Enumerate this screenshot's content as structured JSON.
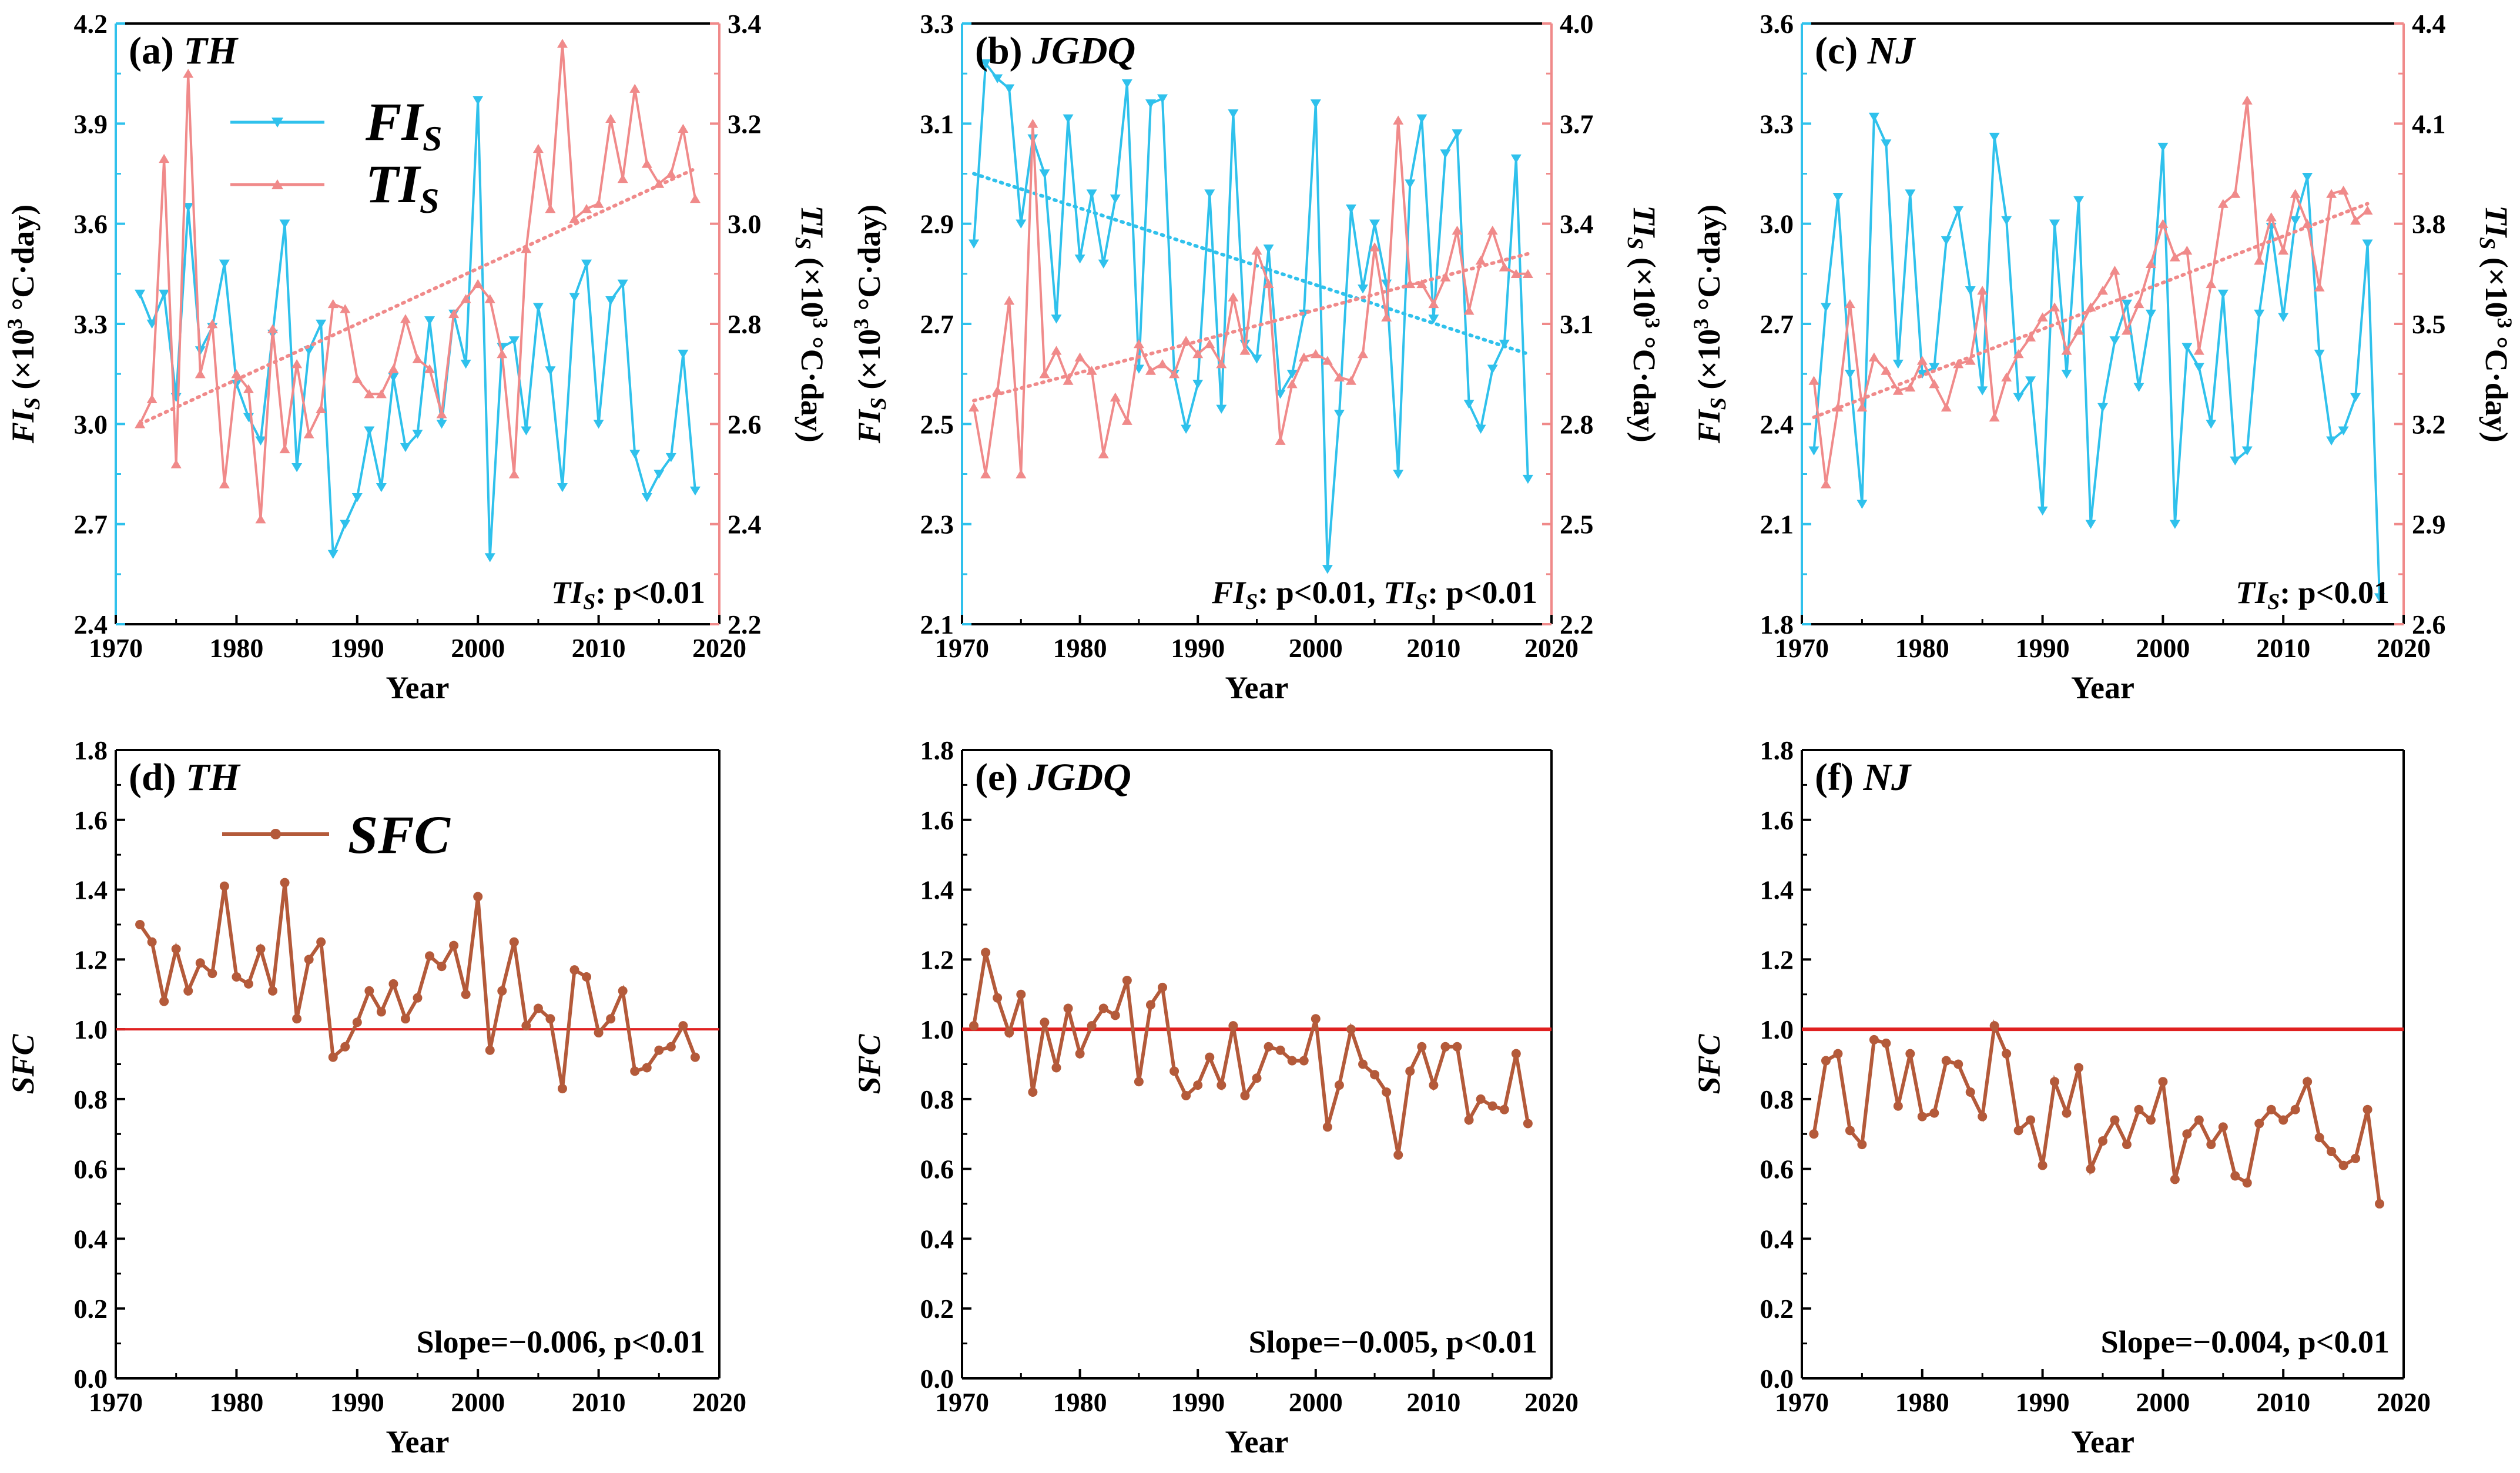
{
  "colors": {
    "fi": "#2fc1ec",
    "ti": "#f08a8a",
    "sfc": "#b45a3a",
    "ref": "#e02020"
  },
  "legend": {
    "fi": {
      "main": "FI",
      "sub": "S"
    },
    "ti": {
      "main": "TI",
      "sub": "S"
    },
    "sfc": "SFC"
  },
  "chart_data": [
    {
      "panel": "a",
      "type": "line",
      "title": {
        "prefix": "(a) ",
        "name": "TH"
      },
      "xlabel": "Year",
      "xlim": [
        1970,
        2020
      ],
      "xticks": [
        1970,
        1980,
        1990,
        2000,
        2010,
        2020
      ],
      "ylabel_left": {
        "main": "FI",
        "sub": "S",
        "rest": " (×10",
        "sup": "3",
        "unit": " °C·day)"
      },
      "ylabel_right": {
        "main": "TI",
        "sub": "S",
        "rest": " (×10",
        "sup": "3",
        "unit": " °C·day)"
      },
      "ylim_left": [
        2.4,
        4.2
      ],
      "yticks_left": [
        "2.4",
        "2.7",
        "3.0",
        "3.3",
        "3.6",
        "3.9",
        "4.2"
      ],
      "ylim_right": [
        2.2,
        3.4
      ],
      "yticks_right": [
        "2.2",
        "2.4",
        "2.6",
        "2.8",
        "3.0",
        "3.2",
        "3.4"
      ],
      "annotation": {
        "parts": [
          {
            "main": "TI",
            "sub": "S",
            "rest": ": p<0.01"
          }
        ]
      },
      "legend_position": "upper-center",
      "series": [
        {
          "name": "FIS",
          "axis": "left",
          "x_start": 1972,
          "values": [
            3.39,
            3.3,
            3.39,
            3.08,
            3.65,
            3.22,
            3.29,
            3.48,
            3.12,
            3.02,
            2.95,
            3.27,
            3.6,
            2.87,
            3.22,
            3.3,
            2.61,
            2.7,
            2.78,
            2.98,
            2.81,
            3.14,
            2.93,
            2.97,
            3.31,
            3.0,
            3.33,
            3.18,
            3.97,
            2.6,
            3.23,
            3.25,
            2.98,
            3.35,
            3.16,
            2.81,
            3.38,
            3.48,
            3.0,
            3.37,
            3.42,
            2.91,
            2.78,
            2.85,
            2.9,
            3.21,
            2.8
          ],
          "trend": null
        },
        {
          "name": "TIS",
          "axis": "right",
          "x_start": 1972,
          "values": [
            2.6,
            2.65,
            3.13,
            2.52,
            3.3,
            2.7,
            2.8,
            2.48,
            2.7,
            2.67,
            2.41,
            2.79,
            2.55,
            2.72,
            2.58,
            2.63,
            2.84,
            2.83,
            2.69,
            2.66,
            2.66,
            2.71,
            2.81,
            2.73,
            2.71,
            2.62,
            2.82,
            2.85,
            2.88,
            2.85,
            2.74,
            2.5,
            2.95,
            3.15,
            3.03,
            3.36,
            3.01,
            3.03,
            3.04,
            3.21,
            3.09,
            3.27,
            3.12,
            3.08,
            3.1,
            3.19,
            3.05
          ],
          "trend": [
            2.6,
            3.11
          ]
        }
      ]
    },
    {
      "panel": "b",
      "type": "line",
      "title": {
        "prefix": "(b) ",
        "name": "JGDQ"
      },
      "xlabel": "Year",
      "xlim": [
        1970,
        2020
      ],
      "xticks": [
        1970,
        1980,
        1990,
        2000,
        2010,
        2020
      ],
      "ylabel_left": {
        "main": "FI",
        "sub": "S",
        "rest": " (×10",
        "sup": "3",
        "unit": " °C·day)"
      },
      "ylabel_right": {
        "main": "TI",
        "sub": "S",
        "rest": " (×10",
        "sup": "3",
        "unit": " °C·day)"
      },
      "ylim_left": [
        2.1,
        3.3
      ],
      "yticks_left": [
        "2.1",
        "2.3",
        "2.5",
        "2.7",
        "2.9",
        "3.1",
        "3.3"
      ],
      "ylim_right": [
        2.2,
        4.0
      ],
      "yticks_right": [
        "2.2",
        "2.5",
        "2.8",
        "3.1",
        "3.4",
        "3.7",
        "4.0"
      ],
      "annotation": {
        "parts": [
          {
            "main": "FI",
            "sub": "S",
            "rest": ": p<0.01, "
          },
          {
            "main": "TI",
            "sub": "S",
            "rest": ": p<0.01"
          }
        ]
      },
      "legend_position": "none",
      "series": [
        {
          "name": "FIS",
          "axis": "left",
          "x_start": 1971,
          "values": [
            2.86,
            3.22,
            3.19,
            3.17,
            2.9,
            3.07,
            3.0,
            2.71,
            3.11,
            2.83,
            2.96,
            2.82,
            2.95,
            3.18,
            2.61,
            3.14,
            3.15,
            2.6,
            2.49,
            2.58,
            2.96,
            2.53,
            3.12,
            2.66,
            2.63,
            2.85,
            2.56,
            2.6,
            2.72,
            3.14,
            2.21,
            2.52,
            2.93,
            2.77,
            2.9,
            2.78,
            2.4,
            2.98,
            3.11,
            2.71,
            3.04,
            3.08,
            2.54,
            2.49,
            2.61,
            2.66,
            3.03,
            2.39
          ],
          "trend": [
            3.0,
            2.64
          ]
        },
        {
          "name": "TIS",
          "axis": "right",
          "x_start": 1971,
          "values": [
            2.85,
            2.65,
            2.9,
            3.17,
            2.65,
            3.7,
            2.95,
            3.02,
            2.93,
            3.0,
            2.96,
            2.71,
            2.88,
            2.81,
            3.04,
            2.96,
            2.98,
            2.95,
            3.05,
            3.01,
            3.04,
            2.98,
            3.18,
            3.02,
            3.32,
            3.22,
            2.75,
            2.92,
            3.0,
            3.01,
            2.99,
            2.94,
            2.93,
            3.01,
            3.33,
            3.12,
            3.71,
            3.22,
            3.22,
            3.16,
            3.24,
            3.38,
            3.14,
            3.29,
            3.38,
            3.27,
            3.25,
            3.25
          ],
          "trend": [
            2.87,
            3.31
          ]
        }
      ]
    },
    {
      "panel": "c",
      "type": "line",
      "title": {
        "prefix": "(c) ",
        "name": "NJ"
      },
      "xlabel": "Year",
      "xlim": [
        1970,
        2020
      ],
      "xticks": [
        1970,
        1980,
        1990,
        2000,
        2010,
        2020
      ],
      "ylabel_left": {
        "main": "FI",
        "sub": "S",
        "rest": " (×10",
        "sup": "3",
        "unit": " °C·day)"
      },
      "ylabel_right": {
        "main": "TI",
        "sub": "S",
        "rest": " (×10",
        "sup": "3",
        "unit": " °C·day)"
      },
      "ylim_left": [
        1.8,
        3.6
      ],
      "yticks_left": [
        "1.8",
        "2.1",
        "2.4",
        "2.7",
        "3.0",
        "3.3",
        "3.6"
      ],
      "ylim_right": [
        2.6,
        4.4
      ],
      "yticks_right": [
        "2.6",
        "2.9",
        "3.2",
        "3.5",
        "3.8",
        "4.1",
        "4.4"
      ],
      "annotation": {
        "parts": [
          {
            "main": "TI",
            "sub": "S",
            "rest": ": p<0.01"
          }
        ]
      },
      "legend_position": "none",
      "series": [
        {
          "name": "FIS",
          "axis": "left",
          "x_start": 1971,
          "values": [
            2.32,
            2.75,
            3.08,
            2.55,
            2.16,
            3.32,
            3.24,
            2.58,
            3.09,
            2.55,
            2.57,
            2.95,
            3.04,
            2.8,
            2.5,
            3.26,
            3.01,
            2.48,
            2.53,
            2.14,
            3.0,
            2.55,
            3.07,
            2.1,
            2.45,
            2.65,
            2.76,
            2.51,
            2.73,
            3.23,
            2.1,
            2.63,
            2.57,
            2.4,
            2.79,
            2.29,
            2.32,
            2.73,
            2.99,
            2.72,
            3.01,
            3.14,
            2.61,
            2.35,
            2.38,
            2.48,
            2.94,
            1.88
          ],
          "trend": null
        },
        {
          "name": "TIS",
          "axis": "right",
          "x_start": 1971,
          "values": [
            3.33,
            3.02,
            3.25,
            3.56,
            3.25,
            3.4,
            3.36,
            3.3,
            3.31,
            3.39,
            3.32,
            3.25,
            3.38,
            3.39,
            3.6,
            3.22,
            3.34,
            3.41,
            3.46,
            3.52,
            3.55,
            3.42,
            3.48,
            3.55,
            3.6,
            3.66,
            3.48,
            3.56,
            3.68,
            3.8,
            3.7,
            3.72,
            3.42,
            3.62,
            3.86,
            3.89,
            4.17,
            3.69,
            3.82,
            3.72,
            3.89,
            3.8,
            3.61,
            3.89,
            3.9,
            3.81,
            3.84
          ],
          "trend": [
            3.22,
            3.86
          ]
        }
      ]
    },
    {
      "panel": "d",
      "type": "line",
      "title": {
        "prefix": "(d) ",
        "name": "TH"
      },
      "xlabel": "Year",
      "xlim": [
        1970,
        2020
      ],
      "xticks": [
        1970,
        1980,
        1990,
        2000,
        2010,
        2020
      ],
      "ylabel": "SFC",
      "ylim": [
        0.0,
        1.8
      ],
      "yticks": [
        "0.0",
        "0.2",
        "0.4",
        "0.6",
        "0.8",
        "1.0",
        "1.2",
        "1.4",
        "1.6",
        "1.8"
      ],
      "reference_line": 1.0,
      "annotation": "Slope=−0.006, p<0.01",
      "legend_position": "upper-center",
      "series": [
        {
          "name": "SFC",
          "x_start": 1972,
          "values": [
            1.3,
            1.25,
            1.08,
            1.23,
            1.11,
            1.19,
            1.16,
            1.41,
            1.15,
            1.13,
            1.23,
            1.11,
            1.42,
            1.03,
            1.2,
            1.25,
            0.92,
            0.95,
            1.02,
            1.11,
            1.05,
            1.13,
            1.03,
            1.09,
            1.21,
            1.18,
            1.24,
            1.1,
            1.38,
            0.94,
            1.11,
            1.25,
            1.01,
            1.06,
            1.03,
            0.83,
            1.17,
            1.15,
            0.99,
            1.03,
            1.11,
            0.88,
            0.89,
            0.94,
            0.95,
            1.01,
            0.92
          ]
        }
      ]
    },
    {
      "panel": "e",
      "type": "line",
      "title": {
        "prefix": "(e) ",
        "name": "JGDQ"
      },
      "xlabel": "Year",
      "xlim": [
        1970,
        2020
      ],
      "xticks": [
        1970,
        1980,
        1990,
        2000,
        2010,
        2020
      ],
      "ylabel": "SFC",
      "ylim": [
        0.0,
        1.8
      ],
      "yticks": [
        "0.0",
        "0.2",
        "0.4",
        "0.6",
        "0.8",
        "1.0",
        "1.2",
        "1.4",
        "1.6",
        "1.8"
      ],
      "reference_line": 1.0,
      "annotation": "Slope=−0.005, p<0.01",
      "legend_position": "none",
      "series": [
        {
          "name": "SFC",
          "x_start": 1971,
          "values": [
            1.01,
            1.22,
            1.09,
            0.99,
            1.1,
            0.82,
            1.02,
            0.89,
            1.06,
            0.93,
            1.01,
            1.06,
            1.04,
            1.14,
            0.85,
            1.07,
            1.12,
            0.88,
            0.81,
            0.84,
            0.92,
            0.84,
            1.01,
            0.81,
            0.86,
            0.95,
            0.94,
            0.91,
            0.91,
            1.03,
            0.72,
            0.84,
            1.0,
            0.9,
            0.87,
            0.82,
            0.64,
            0.88,
            0.95,
            0.84,
            0.95,
            0.95,
            0.74,
            0.8,
            0.78,
            0.77,
            0.93,
            0.73
          ]
        }
      ]
    },
    {
      "panel": "f",
      "type": "line",
      "title": {
        "prefix": "(f) ",
        "name": "NJ"
      },
      "xlabel": "Year",
      "xlim": [
        1970,
        2020
      ],
      "xticks": [
        1970,
        1980,
        1990,
        2000,
        2010,
        2020
      ],
      "ylabel": "SFC",
      "ylim": [
        0.0,
        1.8
      ],
      "yticks": [
        "0.0",
        "0.2",
        "0.4",
        "0.6",
        "0.8",
        "1.0",
        "1.2",
        "1.4",
        "1.6",
        "1.8"
      ],
      "reference_line": 1.0,
      "annotation": "Slope=−0.004, p<0.01",
      "legend_position": "none",
      "series": [
        {
          "name": "SFC",
          "x_start": 1971,
          "values": [
            0.7,
            0.91,
            0.93,
            0.71,
            0.67,
            0.97,
            0.96,
            0.78,
            0.93,
            0.75,
            0.76,
            0.91,
            0.9,
            0.82,
            0.75,
            1.01,
            0.93,
            0.71,
            0.74,
            0.61,
            0.85,
            0.76,
            0.89,
            0.6,
            0.68,
            0.74,
            0.67,
            0.77,
            0.74,
            0.85,
            0.57,
            0.7,
            0.74,
            0.67,
            0.72,
            0.58,
            0.56,
            0.73,
            0.77,
            0.74,
            0.77,
            0.85,
            0.69,
            0.65,
            0.61,
            0.63,
            0.77,
            0.5
          ]
        }
      ]
    }
  ]
}
